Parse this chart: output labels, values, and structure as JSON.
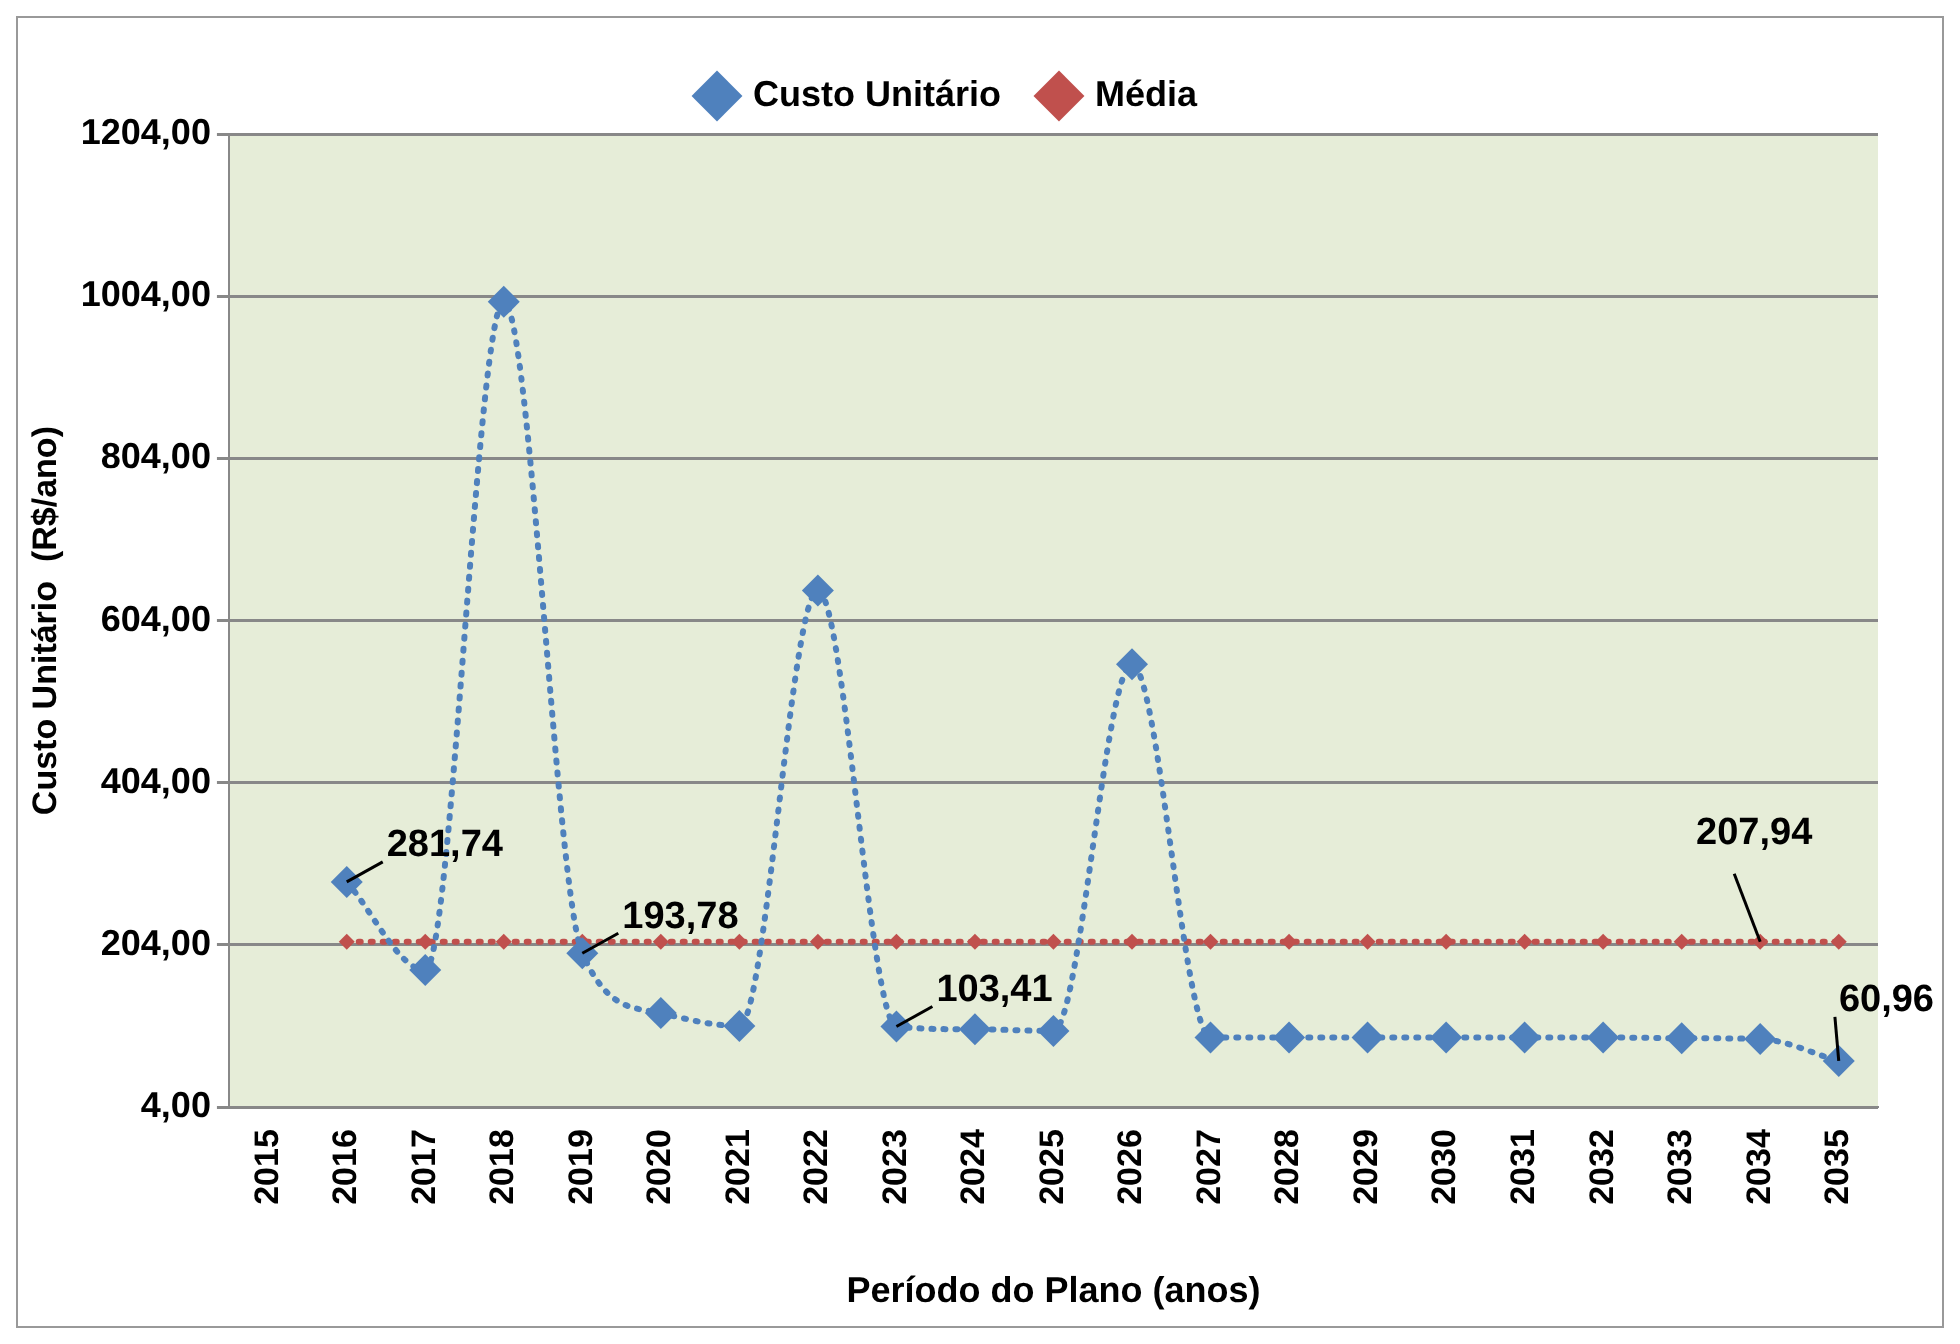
{
  "chart_data": {
    "type": "line",
    "xlabel": "Período do Plano (anos)",
    "ylabel": "Custo Unitário  (R$/ano)",
    "categories": [
      "2015",
      "2016",
      "2017",
      "2018",
      "2019",
      "2020",
      "2021",
      "2022",
      "2023",
      "2024",
      "2025",
      "2026",
      "2027",
      "2028",
      "2029",
      "2030",
      "2031",
      "2032",
      "2033",
      "2034",
      "2035"
    ],
    "series": [
      {
        "name": "Custo Unitário",
        "color": "#4f81bd",
        "marker": "diamond",
        "line_style": "dotted",
        "values": [
          null,
          281.74,
          173,
          997,
          193.78,
          120,
          104,
          641,
          103.41,
          100,
          98,
          550,
          90,
          90,
          90,
          90,
          90,
          90,
          89,
          88,
          60.96
        ],
        "value_labels": [
          null,
          "281,74",
          null,
          null,
          "193,78",
          null,
          null,
          null,
          "103,41",
          null,
          null,
          null,
          null,
          null,
          null,
          null,
          null,
          null,
          null,
          null,
          "60,96"
        ]
      },
      {
        "name": "Média",
        "color": "#c0504d",
        "marker": "diamond",
        "line_style": "dotted",
        "values": [
          null,
          207.94,
          207.94,
          207.94,
          207.94,
          207.94,
          207.94,
          207.94,
          207.94,
          207.94,
          207.94,
          207.94,
          207.94,
          207.94,
          207.94,
          207.94,
          207.94,
          207.94,
          207.94,
          207.94,
          207.94
        ],
        "value_labels": [
          null,
          null,
          null,
          null,
          null,
          null,
          null,
          null,
          null,
          null,
          null,
          null,
          null,
          null,
          null,
          null,
          null,
          null,
          null,
          "207,94",
          null
        ]
      }
    ],
    "ylim": [
      4,
      1204
    ],
    "yticks": [
      {
        "value": 4,
        "label": "4,00"
      },
      {
        "value": 204,
        "label": "204,00"
      },
      {
        "value": 404,
        "label": "404,00"
      },
      {
        "value": 604,
        "label": "604,00"
      },
      {
        "value": 804,
        "label": "804,00"
      },
      {
        "value": 1004,
        "label": "1004,00"
      },
      {
        "value": 1204,
        "label": "1204,00"
      }
    ],
    "grid": "y",
    "legend": "top"
  }
}
